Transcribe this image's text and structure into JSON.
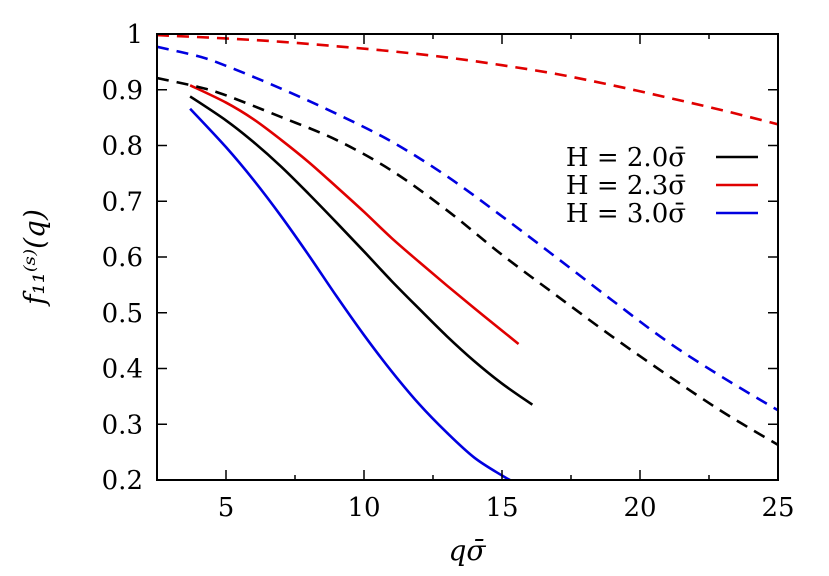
{
  "chart_data": {
    "type": "line",
    "xlabel": "qσ̄",
    "ylabel": "f₁₁⁽ˢ⁾(q)",
    "xlim": [
      2.5,
      25
    ],
    "ylim": [
      0.2,
      1.0
    ],
    "xticks": [
      5,
      10,
      15,
      20,
      25
    ],
    "xtick_labels": [
      "5",
      "10",
      "15",
      "20",
      "25"
    ],
    "yticks": [
      0.2,
      0.3,
      0.4,
      0.5,
      0.6,
      0.7,
      0.8,
      0.9,
      1.0
    ],
    "ytick_labels": [
      "0.2",
      "0.3",
      "0.4",
      "0.5",
      "0.6",
      "0.7",
      "0.8",
      "0.9",
      "1"
    ],
    "grid": false,
    "legend_position": "right",
    "series": [
      {
        "name": "H = 2.0σ̄",
        "color": "#000000",
        "style": "solid",
        "legend": true,
        "x": [
          3.7,
          5,
          6,
          7,
          8,
          9,
          10,
          11,
          12,
          13,
          14,
          15,
          16.1
        ],
        "y": [
          0.888,
          0.845,
          0.806,
          0.762,
          0.713,
          0.662,
          0.61,
          0.557,
          0.507,
          0.458,
          0.413,
          0.373,
          0.335
        ]
      },
      {
        "name": "H = 2.3σ̄",
        "color": "#e00000",
        "style": "solid",
        "legend": true,
        "x": [
          3.7,
          5,
          6,
          7,
          8,
          9,
          10,
          11,
          12,
          13,
          14,
          15,
          15.6
        ],
        "y": [
          0.908,
          0.877,
          0.847,
          0.81,
          0.77,
          0.726,
          0.681,
          0.634,
          0.591,
          0.549,
          0.508,
          0.468,
          0.444
        ]
      },
      {
        "name": "H = 3.0σ̄",
        "color": "#0000e0",
        "style": "solid",
        "legend": true,
        "x": [
          3.7,
          5,
          6,
          7,
          8,
          9,
          10,
          11,
          12,
          13,
          14,
          15,
          15.4
        ],
        "y": [
          0.866,
          0.797,
          0.738,
          0.673,
          0.603,
          0.53,
          0.46,
          0.395,
          0.336,
          0.285,
          0.24,
          0.208,
          0.197
        ]
      },
      {
        "name": "",
        "color": "#000000",
        "style": "dashed",
        "legend": false,
        "x": [
          2.5,
          4,
          5,
          7,
          9,
          11,
          13,
          15,
          17,
          19,
          21,
          23,
          25
        ],
        "y": [
          0.921,
          0.905,
          0.89,
          0.851,
          0.81,
          0.755,
          0.684,
          0.604,
          0.53,
          0.457,
          0.388,
          0.322,
          0.263
        ]
      },
      {
        "name": "",
        "color": "#e00000",
        "style": "dashed",
        "legend": false,
        "x": [
          2.5,
          5,
          7,
          9,
          11,
          13,
          15,
          17,
          19,
          21,
          23,
          25
        ],
        "y": [
          0.998,
          0.992,
          0.986,
          0.978,
          0.969,
          0.958,
          0.944,
          0.928,
          0.908,
          0.886,
          0.863,
          0.838
        ]
      },
      {
        "name": "",
        "color": "#0000e0",
        "style": "dashed",
        "legend": false,
        "x": [
          2.5,
          4,
          5,
          7,
          9,
          11,
          13,
          15,
          17,
          19,
          21,
          23,
          25
        ],
        "y": [
          0.977,
          0.96,
          0.943,
          0.902,
          0.857,
          0.807,
          0.745,
          0.673,
          0.598,
          0.522,
          0.448,
          0.384,
          0.325
        ]
      }
    ]
  }
}
